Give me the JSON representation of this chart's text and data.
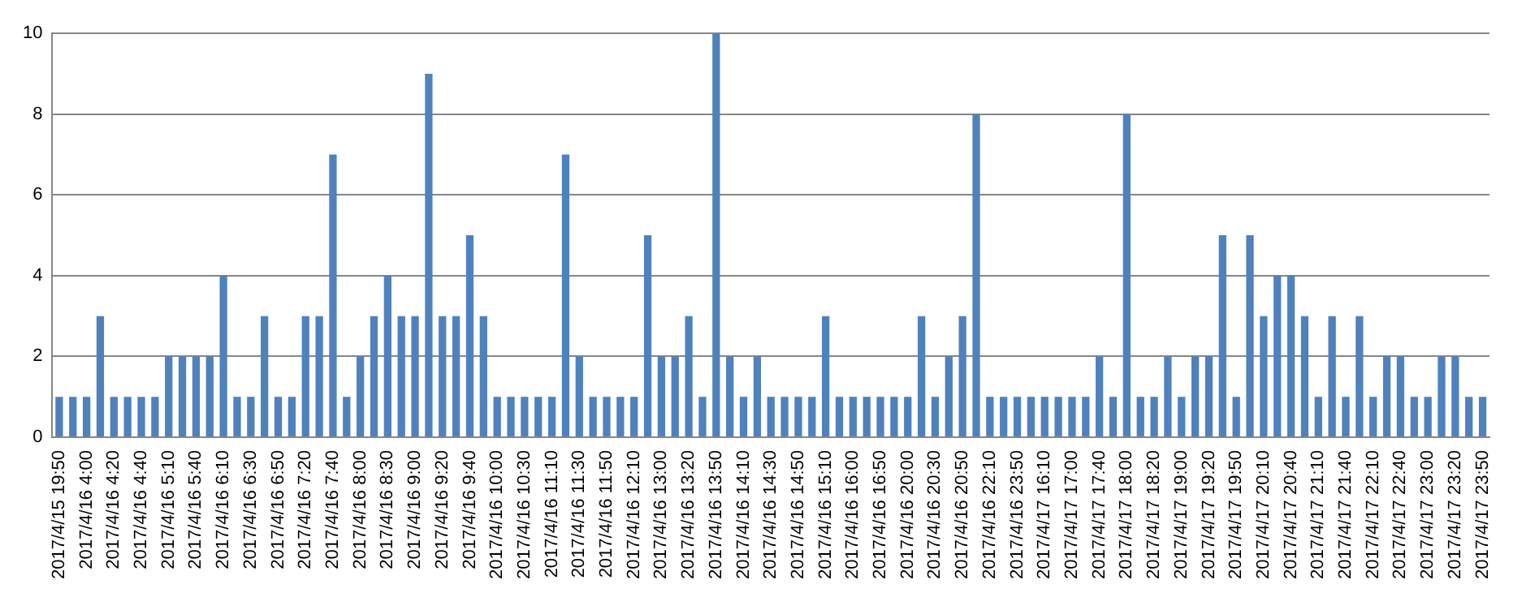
{
  "chart_data": {
    "type": "bar",
    "categories": [
      "2017/4/15 19:50",
      null,
      "2017/4/16 4:00",
      null,
      "2017/4/16 4:20",
      null,
      "2017/4/16 4:40",
      null,
      "2017/4/16 5:10",
      null,
      "2017/4/16 5:40",
      null,
      "2017/4/16 6:10",
      null,
      "2017/4/16 6:30",
      null,
      "2017/4/16 6:50",
      null,
      "2017/4/16 7:20",
      null,
      "2017/4/16 7:40",
      null,
      "2017/4/16 8:00",
      null,
      "2017/4/16 8:30",
      null,
      "2017/4/16 9:00",
      null,
      "2017/4/16 9:20",
      null,
      "2017/4/16 9:40",
      null,
      "2017/4/16 10:00",
      null,
      "2017/4/16 10:30",
      null,
      "2017/4/16 11:10",
      null,
      "2017/4/16 11:30",
      null,
      "2017/4/16 11:50",
      null,
      "2017/4/16 12:10",
      null,
      "2017/4/16 13:00",
      null,
      "2017/4/16 13:20",
      null,
      "2017/4/16 13:50",
      null,
      "2017/4/16 14:10",
      null,
      "2017/4/16 14:30",
      null,
      "2017/4/16 14:50",
      null,
      "2017/4/16 15:10",
      null,
      "2017/4/16 16:00",
      null,
      "2017/4/16 16:50",
      null,
      "2017/4/16 20:00",
      null,
      "2017/4/16 20:30",
      null,
      "2017/4/16 20:50",
      null,
      "2017/4/16 22:10",
      null,
      "2017/4/16 23:50",
      null,
      "2017/4/17 16:10",
      null,
      "2017/4/17 17:00",
      null,
      "2017/4/17 17:40",
      null,
      "2017/4/17 18:00",
      null,
      "2017/4/17 18:20",
      null,
      "2017/4/17 19:00",
      null,
      "2017/4/17 19:20",
      null,
      "2017/4/17 19:50",
      null,
      "2017/4/17 20:10",
      null,
      "2017/4/17 20:40",
      null,
      "2017/4/17 21:10",
      null,
      "2017/4/17 21:40",
      null,
      "2017/4/17 22:10",
      null,
      "2017/4/17 22:40",
      null,
      "2017/4/17 23:00",
      null,
      "2017/4/17 23:20",
      null,
      "2017/4/17 23:50"
    ],
    "values": [
      1,
      1,
      1,
      3,
      1,
      1,
      1,
      1,
      2,
      2,
      2,
      2,
      4,
      1,
      1,
      3,
      1,
      1,
      3,
      3,
      7,
      1,
      2,
      3,
      4,
      3,
      3,
      9,
      3,
      3,
      5,
      3,
      1,
      1,
      1,
      1,
      1,
      7,
      2,
      1,
      1,
      1,
      1,
      5,
      2,
      2,
      3,
      1,
      10,
      2,
      1,
      2,
      1,
      1,
      1,
      1,
      3,
      1,
      1,
      1,
      1,
      1,
      1,
      3,
      1,
      2,
      3,
      8,
      1,
      1,
      1,
      1,
      1,
      1,
      1,
      1,
      2,
      1,
      8,
      1,
      1,
      2,
      1,
      2,
      2,
      5,
      1,
      5,
      3,
      4,
      4,
      3,
      1,
      3,
      1,
      3,
      1,
      2,
      2,
      1,
      1,
      2,
      2,
      1,
      1
    ],
    "color": "#4f81bd",
    "ylim": [
      0,
      10
    ],
    "yticks": [
      0,
      2,
      4,
      6,
      8,
      10
    ],
    "grid": "y",
    "legend": false
  }
}
